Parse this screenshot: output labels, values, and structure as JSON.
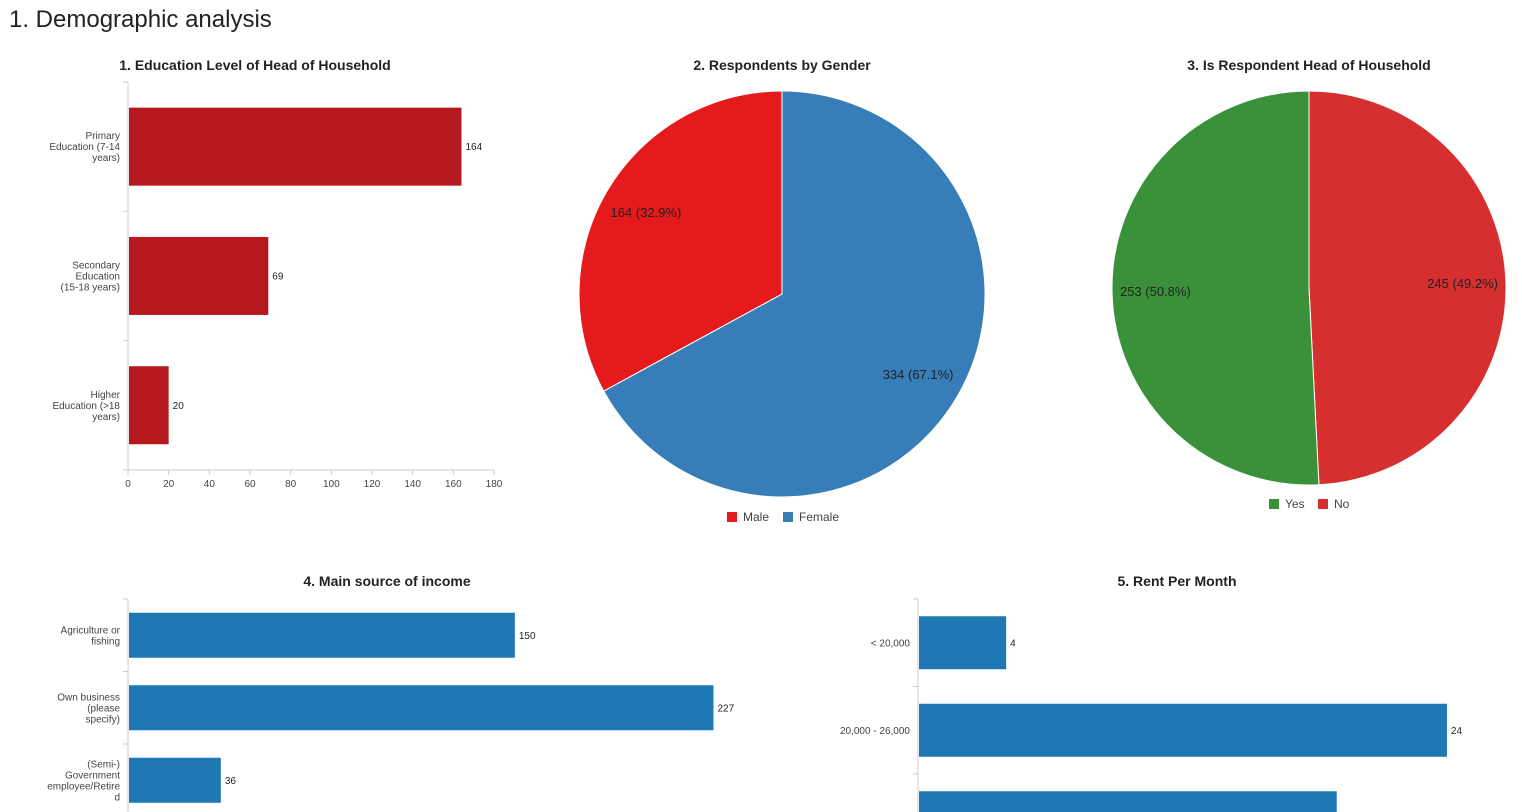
{
  "page": {
    "title": "1. Demographic analysis"
  },
  "chart_data": [
    {
      "id": "education",
      "type": "bar",
      "orientation": "horizontal",
      "title": "1. Education Level of Head of Household",
      "categories": [
        [
          "Primary",
          "Education (7-14",
          "years)"
        ],
        [
          "Secondary",
          "Education",
          "(15-18 years)"
        ],
        [
          "Higher",
          "Education (>18",
          "years)"
        ]
      ],
      "values": [
        164,
        69,
        20
      ],
      "value_labels": [
        "164",
        "69",
        "20"
      ],
      "xlim": [
        0,
        180
      ],
      "ticks": [
        "0",
        "20",
        "40",
        "60",
        "80",
        "100",
        "120",
        "140",
        "160",
        "180"
      ],
      "color": "#b5191d"
    },
    {
      "id": "gender",
      "type": "pie",
      "title": "2. Respondents by Gender",
      "slices": [
        {
          "name": "Male",
          "value": 164,
          "label": "164 (32.9%)",
          "color": "#e41a1c"
        },
        {
          "name": "Female",
          "value": 334,
          "label": "334 (67.1%)",
          "color": "#377eb8"
        }
      ],
      "legend_position": "bottom"
    },
    {
      "id": "head",
      "type": "pie",
      "title": "3. Is Respondent Head of Household",
      "slices": [
        {
          "name": "Yes",
          "value": 253,
          "label": "253 (50.8%)",
          "color": "#3a913a"
        },
        {
          "name": "No",
          "value": 245,
          "label": "245 (49.2%)",
          "color": "#d62f2f"
        }
      ],
      "legend_position": "bottom"
    },
    {
      "id": "income",
      "type": "bar",
      "orientation": "horizontal",
      "title": "4. Main source of income",
      "categories": [
        [
          "Agriculture or",
          "fishing"
        ],
        [
          "Own business",
          "(please",
          "specify)"
        ],
        [
          "(Semi-)",
          "Government",
          "employee/Retire",
          "d"
        ]
      ],
      "values": [
        150,
        227,
        36
      ],
      "value_labels": [
        "150",
        "227",
        "36"
      ],
      "xlim": [
        0,
        240
      ],
      "color": "#1f77b4"
    },
    {
      "id": "rent",
      "type": "bar",
      "orientation": "horizontal",
      "title": "5. Rent Per Month",
      "categories": [
        [
          "< 20,000"
        ],
        [
          "20,000 - 26,000"
        ],
        []
      ],
      "values": [
        4,
        24,
        19
      ],
      "value_labels": [
        "4",
        "24",
        ""
      ],
      "xlim": [
        0,
        26
      ],
      "color": "#1f77b4"
    }
  ]
}
